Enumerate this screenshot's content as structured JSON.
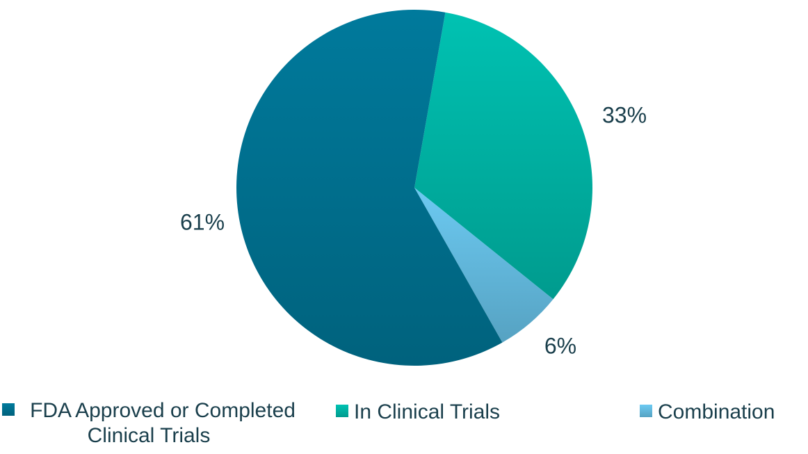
{
  "chart_data": {
    "type": "pie",
    "series": [
      {
        "name": "FDA Approved or Completed Clinical Trials",
        "color": "#007a9c",
        "values": [
          61
        ],
        "value_labels": [
          "61%"
        ]
      },
      {
        "name": "In Clinical Trials",
        "color": "#00c2b2",
        "values": [
          33
        ],
        "value_labels": [
          "33%"
        ]
      },
      {
        "name": "Combination",
        "color": "#6ccaf2",
        "values": [
          6
        ],
        "value_labels": [
          "6%"
        ]
      }
    ]
  }
}
